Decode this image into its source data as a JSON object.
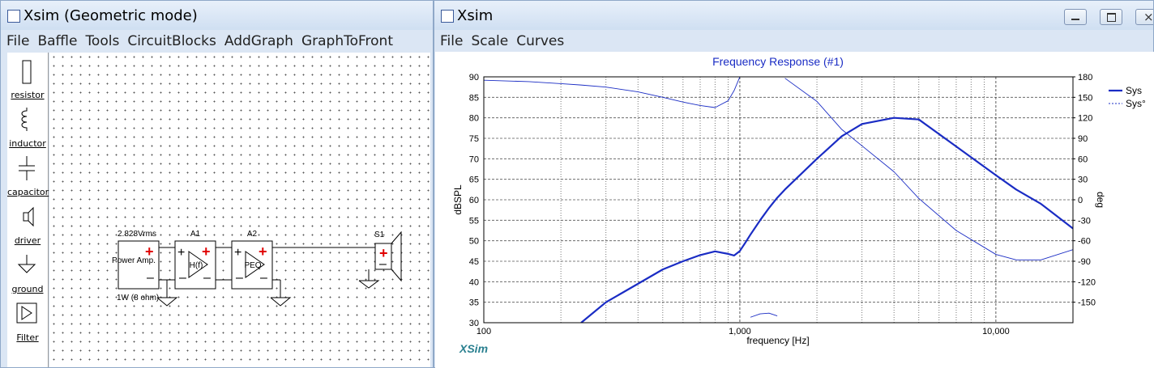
{
  "left_window": {
    "title": "Xsim (Geometric mode)",
    "menu": [
      "File",
      "Baffle",
      "Tools",
      "CircuitBlocks",
      "AddGraph",
      "GraphToFront"
    ],
    "toolbox": [
      "resistor",
      "inductor",
      "capacitor",
      "driver",
      "ground",
      "Filter"
    ],
    "circuit": {
      "source_voltage": "2.828Vrms",
      "source_name": "Power Amp.",
      "source_power": "1W (8 ohm)",
      "blocks": [
        {
          "name": "A1",
          "label": "H(f)"
        },
        {
          "name": "A2",
          "label": "PEQ"
        }
      ],
      "speaker": "S1"
    }
  },
  "right_window": {
    "title": "Xsim",
    "menu": [
      "File",
      "Scale",
      "Curves"
    ]
  },
  "chart_data": {
    "type": "line",
    "title": "Frequency Response (#1)",
    "xlabel": "frequency [Hz]",
    "ylabel": "dBSPL",
    "y2label": "deg",
    "watermark": "XSim",
    "xscale": "log",
    "xlim": [
      100,
      20000
    ],
    "xticks": [
      100,
      {
        "value": 1000,
        "label": "1,000"
      },
      {
        "value": 10000,
        "label": "10,000"
      }
    ],
    "ylim": [
      30,
      90
    ],
    "yticks": [
      30,
      35,
      40,
      45,
      50,
      55,
      60,
      65,
      70,
      75,
      80,
      85,
      90
    ],
    "y2lim": [
      -180,
      180
    ],
    "y2ticks": [
      -150,
      -120,
      -90,
      -60,
      -30,
      0,
      30,
      60,
      90,
      120,
      150,
      180
    ],
    "grid": true,
    "legend": "right",
    "x": [
      100,
      150,
      200,
      240,
      300,
      400,
      500,
      600,
      700,
      800,
      900,
      950,
      1000,
      1050,
      1100,
      1200,
      1300,
      1400,
      1450,
      1500,
      2000,
      2500,
      3000,
      4000,
      5000,
      7000,
      10000,
      12000,
      15000,
      20000
    ],
    "series": [
      {
        "name": "Sys",
        "color": "#1a2cc4",
        "line_width": 2.2,
        "legend_style": "solid",
        "values": [
          null,
          null,
          null,
          30,
          35,
          39.5,
          43,
          45,
          46.5,
          47.4,
          46.8,
          46.4,
          47.5,
          49.5,
          51.5,
          55,
          58,
          60.5,
          61.5,
          62.5,
          70,
          75.5,
          78.5,
          80,
          79.6,
          73,
          66,
          62.5,
          59,
          53
        ]
      },
      {
        "name": "Sys°",
        "color": "#1a2cc4",
        "line_width": 0.9,
        "legend_style": "dashed",
        "axis": "y2",
        "values": [
          175,
          173,
          170,
          168,
          165,
          158,
          150,
          143,
          138,
          135,
          145,
          160,
          180,
          null,
          -172,
          -167,
          -166,
          -170,
          null,
          178,
          144,
          103,
          79,
          41,
          2,
          -45,
          -80,
          -88,
          -88,
          -73
        ]
      }
    ]
  }
}
